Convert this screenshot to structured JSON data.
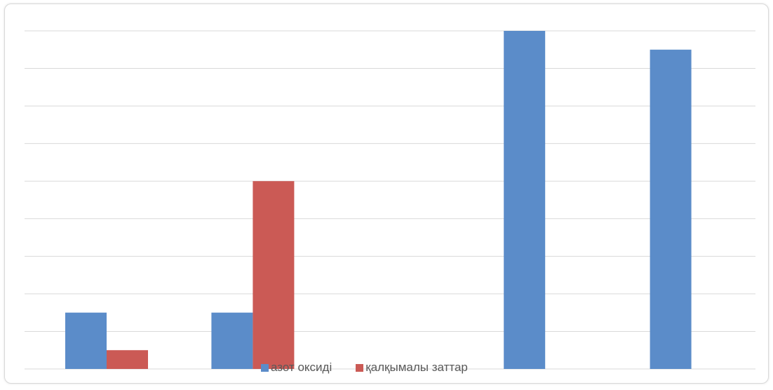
{
  "chart_data": {
    "type": "bar",
    "categories": [
      "",
      "",
      "",
      "",
      ""
    ],
    "series": [
      {
        "name": "азот оксиді",
        "color": "#5b8cc9",
        "values": [
          1.5,
          1.5,
          0,
          9,
          8.5
        ]
      },
      {
        "name": "қалқымалы заттар",
        "color": "#cb5a55",
        "values": [
          0.5,
          5,
          0,
          0,
          0
        ]
      }
    ],
    "ylim": [
      0,
      9
    ],
    "grid": true,
    "legend_position": "bottom"
  }
}
